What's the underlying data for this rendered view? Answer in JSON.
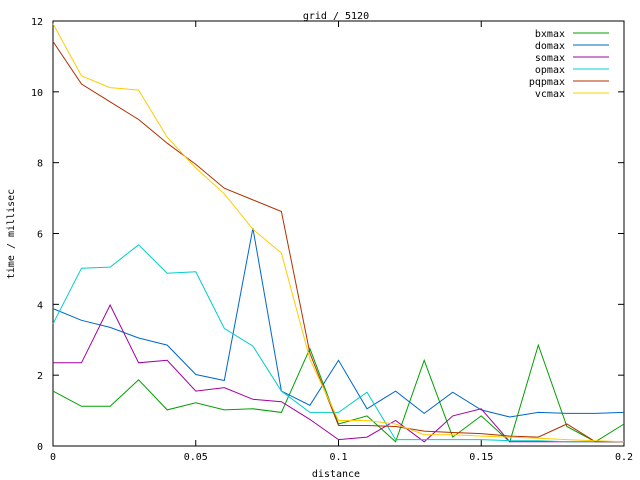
{
  "chart_data": {
    "type": "line",
    "title": "grid / 5120",
    "xlabel": "distance",
    "ylabel": "time / millisec",
    "xlim": [
      0,
      0.2
    ],
    "ylim": [
      0,
      12
    ],
    "x_ticks": [
      "0",
      "0.05",
      "0.1",
      "0.15",
      "0.2"
    ],
    "y_ticks": [
      "0",
      "2",
      "4",
      "6",
      "8",
      "10",
      "12"
    ],
    "grid": false,
    "legend_position": "top-right",
    "x": [
      0,
      0.01,
      0.02,
      0.03,
      0.04,
      0.05,
      0.06,
      0.07,
      0.08,
      0.09,
      0.1,
      0.11,
      0.12,
      0.13,
      0.14,
      0.15,
      0.16,
      0.17,
      0.18,
      0.19,
      0.2
    ],
    "series": [
      {
        "name": "bxmax",
        "color": "#00a000",
        "values": [
          1.55,
          1.12,
          1.12,
          1.87,
          1.02,
          1.22,
          1.02,
          1.05,
          0.95,
          2.75,
          0.62,
          0.85,
          0.12,
          2.42,
          0.25,
          0.85,
          0.12,
          2.85,
          0.55,
          0.12,
          0.62
        ]
      },
      {
        "name": "domax",
        "color": "#0066cc",
        "values": [
          3.88,
          3.55,
          3.35,
          3.05,
          2.85,
          2.02,
          1.85,
          6.15,
          1.55,
          1.15,
          2.42,
          1.05,
          1.55,
          0.92,
          1.52,
          1.02,
          0.82,
          0.95,
          0.92,
          0.92,
          0.95
        ]
      },
      {
        "name": "somax",
        "color": "#a000a0",
        "values": [
          2.35,
          2.35,
          3.98,
          2.35,
          2.42,
          1.55,
          1.65,
          1.32,
          1.25,
          0.75,
          0.18,
          0.25,
          0.72,
          0.12,
          0.85,
          1.05,
          0.12,
          0.12,
          0.12,
          0.12,
          0.12
        ]
      },
      {
        "name": "opmax",
        "color": "#00cccc",
        "values": [
          3.45,
          5.02,
          5.05,
          5.68,
          4.88,
          4.92,
          3.32,
          2.82,
          1.55,
          0.95,
          0.95,
          1.52,
          0.18,
          0.18,
          0.18,
          0.18,
          0.15,
          0.15,
          0.12,
          0.12,
          0.12
        ]
      },
      {
        "name": "pqpmax",
        "color": "#b03000",
        "values": [
          11.42,
          10.22,
          9.72,
          9.22,
          8.55,
          7.95,
          7.28,
          6.95,
          6.62,
          2.62,
          0.58,
          0.58,
          0.55,
          0.42,
          0.38,
          0.35,
          0.28,
          0.25,
          0.62,
          0.12,
          0.12
        ]
      },
      {
        "name": "vcmax",
        "color": "#ffcc00",
        "values": [
          11.92,
          10.45,
          10.12,
          10.05,
          8.72,
          7.85,
          7.12,
          6.12,
          5.45,
          2.45,
          0.72,
          0.72,
          0.62,
          0.32,
          0.32,
          0.28,
          0.25,
          0.22,
          0.18,
          0.15,
          0.12
        ]
      }
    ]
  }
}
